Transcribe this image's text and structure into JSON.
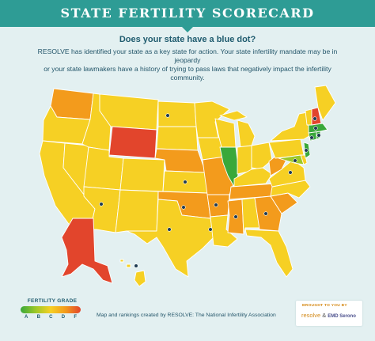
{
  "header": {
    "title": "STATE FERTILITY SCORECARD"
  },
  "intro": {
    "question": "Does your state have a blue dot?",
    "body_line1": "RESOLVE has identified your state as a key state for action. Your state infertility mandate may be in jeopardy",
    "body_line2": "or your state lawmakers have a history of trying to pass laws that negatively impact the infertility community."
  },
  "legend": {
    "title": "FERTILITY GRADE",
    "grades": [
      "A",
      "B",
      "C",
      "D",
      "F"
    ],
    "colors": {
      "A": "#39a83a",
      "B": "#9cc828",
      "C": "#f6d024",
      "D": "#f39b1c",
      "F": "#e2452c"
    }
  },
  "map": {
    "blue_dot_color": "#1f3b52",
    "states": [
      {
        "name": "Washington",
        "grade": "D",
        "dot": false
      },
      {
        "name": "Oregon",
        "grade": "C",
        "dot": false
      },
      {
        "name": "California",
        "grade": "C",
        "dot": false
      },
      {
        "name": "Nevada",
        "grade": "C",
        "dot": false
      },
      {
        "name": "Idaho",
        "grade": "C",
        "dot": false
      },
      {
        "name": "Montana",
        "grade": "C",
        "dot": false
      },
      {
        "name": "Wyoming",
        "grade": "F",
        "dot": false
      },
      {
        "name": "Utah",
        "grade": "C",
        "dot": false
      },
      {
        "name": "Arizona",
        "grade": "C",
        "dot": true
      },
      {
        "name": "Colorado",
        "grade": "C",
        "dot": false
      },
      {
        "name": "New Mexico",
        "grade": "C",
        "dot": false
      },
      {
        "name": "North Dakota",
        "grade": "C",
        "dot": true
      },
      {
        "name": "South Dakota",
        "grade": "C",
        "dot": false
      },
      {
        "name": "Nebraska",
        "grade": "D",
        "dot": false
      },
      {
        "name": "Kansas",
        "grade": "C",
        "dot": true
      },
      {
        "name": "Oklahoma",
        "grade": "D",
        "dot": true
      },
      {
        "name": "Texas",
        "grade": "C",
        "dot": true
      },
      {
        "name": "Minnesota",
        "grade": "C",
        "dot": false
      },
      {
        "name": "Iowa",
        "grade": "C",
        "dot": false
      },
      {
        "name": "Missouri",
        "grade": "D",
        "dot": false
      },
      {
        "name": "Arkansas",
        "grade": "D",
        "dot": true
      },
      {
        "name": "Louisiana",
        "grade": "C",
        "dot": true
      },
      {
        "name": "Wisconsin",
        "grade": "C",
        "dot": false
      },
      {
        "name": "Illinois",
        "grade": "A",
        "dot": false
      },
      {
        "name": "Michigan",
        "grade": "C",
        "dot": false
      },
      {
        "name": "Indiana",
        "grade": "C",
        "dot": false
      },
      {
        "name": "Ohio",
        "grade": "C",
        "dot": false
      },
      {
        "name": "Kentucky",
        "grade": "C",
        "dot": false
      },
      {
        "name": "Tennessee",
        "grade": "D",
        "dot": false
      },
      {
        "name": "Mississippi",
        "grade": "D",
        "dot": true
      },
      {
        "name": "Alabama",
        "grade": "C",
        "dot": false
      },
      {
        "name": "Georgia",
        "grade": "D",
        "dot": true
      },
      {
        "name": "Florida",
        "grade": "C",
        "dot": false
      },
      {
        "name": "South Carolina",
        "grade": "D",
        "dot": false
      },
      {
        "name": "North Carolina",
        "grade": "C",
        "dot": false
      },
      {
        "name": "Virginia",
        "grade": "C",
        "dot": true
      },
      {
        "name": "West Virginia",
        "grade": "D",
        "dot": false
      },
      {
        "name": "Pennsylvania",
        "grade": "C",
        "dot": false
      },
      {
        "name": "New York",
        "grade": "C",
        "dot": false
      },
      {
        "name": "Maryland",
        "grade": "B",
        "dot": true
      },
      {
        "name": "Delaware",
        "grade": "C",
        "dot": false
      },
      {
        "name": "New Jersey",
        "grade": "A",
        "dot": true
      },
      {
        "name": "Connecticut",
        "grade": "A",
        "dot": true
      },
      {
        "name": "Rhode Island",
        "grade": "A",
        "dot": true
      },
      {
        "name": "Massachusetts",
        "grade": "A",
        "dot": true
      },
      {
        "name": "Vermont",
        "grade": "C",
        "dot": false
      },
      {
        "name": "New Hampshire",
        "grade": "F",
        "dot": true
      },
      {
        "name": "Maine",
        "grade": "C",
        "dot": false
      },
      {
        "name": "Alaska",
        "grade": "F",
        "dot": false
      },
      {
        "name": "Hawaii",
        "grade": "C",
        "dot": true
      }
    ]
  },
  "footer": {
    "credit": "Map and rankings created by RESOLVE: The National Infertility Association",
    "sponsor_label": "BROUGHT TO YOU BY",
    "sponsor_logo1": "resolve",
    "sponsor_amp": "&",
    "sponsor_logo2": "EMD Serono"
  }
}
